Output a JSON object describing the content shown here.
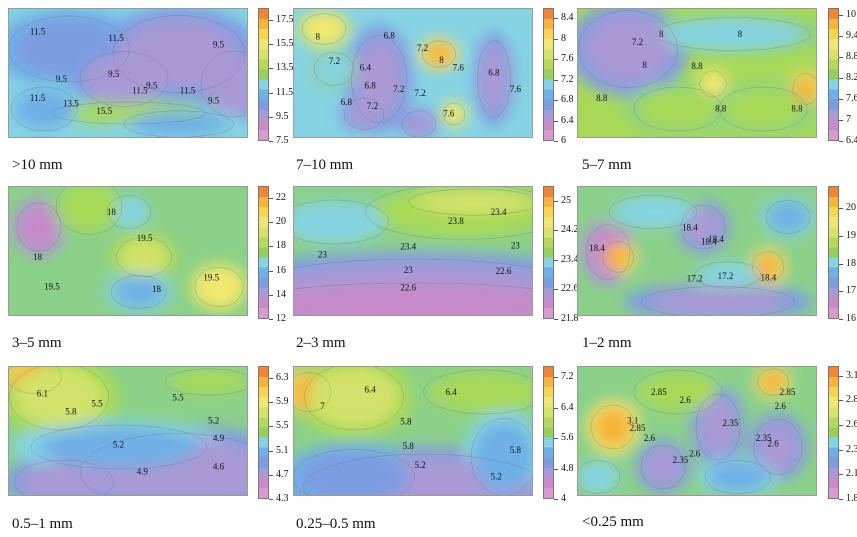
{
  "chart_data": [
    {
      "type": "heatmap",
      "label": ">10 mm",
      "colorbar_ticks": [
        "17.5",
        "15.5",
        "13.5",
        "11.5",
        "9.5",
        "7.5"
      ],
      "range": [
        7.5,
        18.5
      ],
      "contour_labels": [
        "11.5",
        "11.5",
        "9.5",
        "9.5",
        "9.5",
        "9.5",
        "11.5",
        "13.5",
        "15.5",
        "11.5",
        "11.5",
        "9.5"
      ]
    },
    {
      "type": "heatmap",
      "label": "7–10 mm",
      "colorbar_ticks": [
        "8.4",
        "8",
        "7.6",
        "7.2",
        "6.8",
        "6.4",
        "6"
      ],
      "range": [
        6,
        8.6
      ],
      "contour_labels": [
        "8",
        "6.8",
        "7.2",
        "7.2",
        "8",
        "7.6",
        "6.8",
        "7.2",
        "6.4",
        "6.8",
        "7.2",
        "6.8",
        "7.2",
        "7.6",
        "7.6"
      ]
    },
    {
      "type": "heatmap",
      "label": "5–7 mm",
      "colorbar_ticks": [
        "10",
        "9.4",
        "8.8",
        "8.2",
        "7.6",
        "7",
        "6.4"
      ],
      "range": [
        6.4,
        10.2
      ],
      "contour_labels": [
        "7.2",
        "8",
        "8",
        "8",
        "8.8",
        "8.8",
        "8.8",
        "8.8"
      ]
    },
    {
      "type": "heatmap",
      "label": "3–5 mm",
      "colorbar_ticks": [
        "22",
        "20",
        "18",
        "16",
        "14",
        "12"
      ],
      "range": [
        12,
        23
      ],
      "contour_labels": [
        "18",
        "19.5",
        "18",
        "19.5",
        "19.5",
        "18"
      ]
    },
    {
      "type": "heatmap",
      "label": "2–3 mm",
      "colorbar_ticks": [
        "25",
        "24.2",
        "23.4",
        "22.6",
        "21.8"
      ],
      "range": [
        21.8,
        25.4
      ],
      "contour_labels": [
        "23.8",
        "23.4",
        "23.4",
        "23",
        "23",
        "23",
        "22.6",
        "22.6"
      ]
    },
    {
      "type": "heatmap",
      "label": "1–2 mm",
      "colorbar_ticks": [
        "20",
        "19",
        "18",
        "17",
        "16"
      ],
      "range": [
        16,
        20.8
      ],
      "contour_labels": [
        "18.4",
        "18.4",
        "18.4",
        "18.4",
        "17.2",
        "17.2",
        "18.4"
      ]
    },
    {
      "type": "heatmap",
      "label": "0.5–1 mm",
      "colorbar_ticks": [
        "6.3",
        "5.9",
        "5.5",
        "5.1",
        "4.7",
        "4.3"
      ],
      "range": [
        4.3,
        6.5
      ],
      "contour_labels": [
        "6.1",
        "5.8",
        "5.5",
        "5.5",
        "5.2",
        "4.9",
        "5.2",
        "4.6",
        "4.9"
      ]
    },
    {
      "type": "heatmap",
      "label": "0.25–0.5 mm",
      "colorbar_ticks": [
        "7.2",
        "6.4",
        "5.6",
        "4.8",
        "4"
      ],
      "range": [
        4,
        7.5
      ],
      "contour_labels": [
        "7",
        "6.4",
        "6.4",
        "5.8",
        "5.8",
        "5.2",
        "5.2",
        "5.8"
      ]
    },
    {
      "type": "heatmap",
      "label": "<0.25 mm",
      "colorbar_ticks": [
        "3.1",
        "2.85",
        "2.6",
        "2.35",
        "2.1",
        "1.85"
      ],
      "range": [
        1.85,
        3.2
      ],
      "contour_labels": [
        "2.85",
        "2.6",
        "2.85",
        "2.6",
        "3.1",
        "2.85",
        "2.6",
        "2.35",
        "2.35",
        "2.6",
        "2.35",
        "2.6"
      ]
    }
  ]
}
